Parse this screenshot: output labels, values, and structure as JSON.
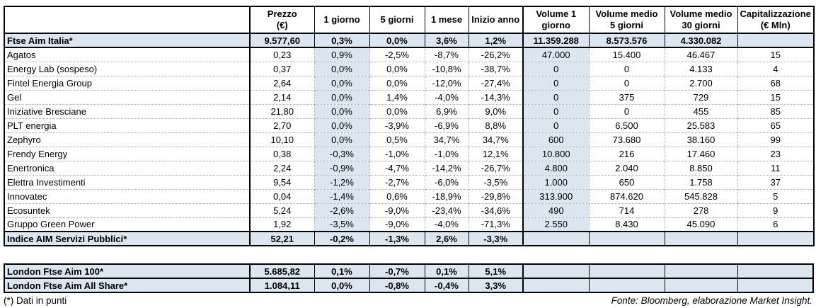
{
  "colors": {
    "highlight": "#dce6f1",
    "border": "#000000"
  },
  "table": {
    "columns": [
      {
        "key": "prezzo",
        "label": "Prezzo (€)",
        "lines": [
          "Prezzo",
          "(€)"
        ]
      },
      {
        "key": "1-giorno",
        "label": "1 giorno",
        "lines": [
          "1 giorno"
        ]
      },
      {
        "key": "5-giorni",
        "label": "5 giorni",
        "lines": [
          "5 giorni"
        ]
      },
      {
        "key": "1-mese",
        "label": "1 mese",
        "lines": [
          "1 mese"
        ]
      },
      {
        "key": "inizio-anno",
        "label": "Inizio anno",
        "lines": [
          "Inizio anno"
        ]
      },
      {
        "key": "volume-1-giorno",
        "label": "Volume 1 giorno",
        "lines": [
          "Volume 1",
          "giorno"
        ]
      },
      {
        "key": "volume-medio-5-giorni",
        "label": "Volume medio 5 giorni",
        "lines": [
          "Volume medio",
          "5 giorni"
        ]
      },
      {
        "key": "volume-medio-30-giorni",
        "label": "Volume medio 30 giorni",
        "lines": [
          "Volume medio",
          "30 giorni"
        ]
      },
      {
        "key": "capitalizzazione",
        "label": "Capitalizzazione (€ Mln)",
        "lines": [
          "Capitalizzazione",
          "(€ Mln)"
        ]
      }
    ],
    "index_row": {
      "name": "Ftse Aim Italia*",
      "values": [
        "9.577,60",
        "0,3%",
        "0,0%",
        "3,6%",
        "1,2%",
        "11.359.288",
        "8.573.576",
        "4.330.082",
        ""
      ]
    },
    "rows": [
      {
        "name": "Agatos",
        "values": [
          "0,23",
          "0,9%",
          "-2,5%",
          "-8,7%",
          "-26,2%",
          "47.000",
          "15.400",
          "46.467",
          "15"
        ]
      },
      {
        "name": "Energy Lab (sospeso)",
        "values": [
          "0,37",
          "0,0%",
          "0,0%",
          "-10,8%",
          "-38,7%",
          "0",
          "0",
          "4.133",
          "4"
        ]
      },
      {
        "name": "Fintel Energia Group",
        "values": [
          "2,64",
          "0,0%",
          "0,0%",
          "-12,0%",
          "-27,4%",
          "0",
          "0",
          "2.700",
          "68"
        ]
      },
      {
        "name": "Gel",
        "values": [
          "2,14",
          "0,0%",
          "1,4%",
          "-4,0%",
          "-14,3%",
          "0",
          "375",
          "729",
          "15"
        ]
      },
      {
        "name": "Iniziative Bresciane",
        "values": [
          "21,80",
          "0,0%",
          "0,0%",
          "6,9%",
          "9,0%",
          "0",
          "0",
          "455",
          "85"
        ]
      },
      {
        "name": "PLT energia",
        "values": [
          "2,70",
          "0,0%",
          "-3,9%",
          "-6,9%",
          "8,8%",
          "0",
          "6.500",
          "25.583",
          "65"
        ]
      },
      {
        "name": "Zephyro",
        "values": [
          "10,10",
          "0,0%",
          "0,5%",
          "34,7%",
          "34,7%",
          "600",
          "73.680",
          "38.160",
          "99"
        ]
      },
      {
        "name": "Frendy Energy",
        "values": [
          "0,38",
          "-0,3%",
          "-1,0%",
          "-1,0%",
          "12,1%",
          "10.800",
          "216",
          "17.460",
          "23"
        ]
      },
      {
        "name": "Enertronica",
        "values": [
          "2,24",
          "-0,9%",
          "-4,7%",
          "-14,2%",
          "-26,7%",
          "4.800",
          "2.040",
          "8.850",
          "11"
        ]
      },
      {
        "name": "Elettra Investimenti",
        "values": [
          "9,54",
          "-1,2%",
          "-2,7%",
          "-6,0%",
          "-3,5%",
          "1.000",
          "650",
          "1.758",
          "37"
        ]
      },
      {
        "name": "Innovatec",
        "values": [
          "0,04",
          "-1,4%",
          "0,6%",
          "-18,9%",
          "-29,8%",
          "313.900",
          "874.620",
          "545.828",
          "5"
        ]
      },
      {
        "name": "Ecosuntek",
        "values": [
          "5,24",
          "-2,6%",
          "-9,0%",
          "-23,4%",
          "-34,6%",
          "490",
          "714",
          "278",
          "9"
        ]
      },
      {
        "name": "Gruppo Green Power",
        "values": [
          "1,92",
          "-3,5%",
          "-9,0%",
          "-4,0%",
          "-71,3%",
          "2.550",
          "8.430",
          "45.090",
          "6"
        ]
      }
    ],
    "servizi_row": {
      "name": "Indice AIM Servizi Pubblici*",
      "values": [
        "52,21",
        "-0,2%",
        "-1,3%",
        "2,6%",
        "-3,3%",
        "",
        "",
        "",
        ""
      ]
    }
  },
  "london_table": {
    "rows": [
      {
        "name": "London Ftse Aim 100*",
        "values": [
          "5.685,82",
          "0,1%",
          "-0,7%",
          "0,1%",
          "5,1%",
          "",
          "",
          "",
          ""
        ]
      },
      {
        "name": "London Ftse Aim All Share*",
        "values": [
          "1.084,11",
          "0,0%",
          "-0,8%",
          "-0,4%",
          "3,3%",
          "",
          "",
          "",
          ""
        ]
      }
    ]
  },
  "footer": {
    "note": "(*) Dati in punti",
    "source": "Fonte: Bloomberg, elaborazione Market Insight."
  }
}
